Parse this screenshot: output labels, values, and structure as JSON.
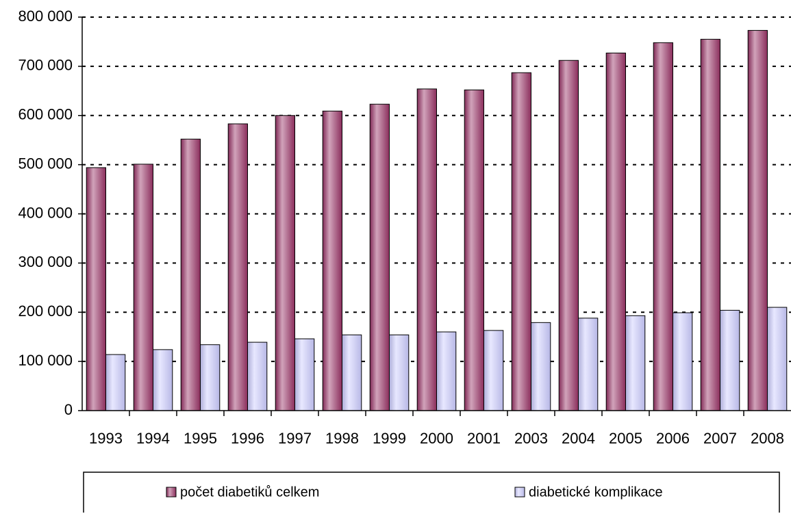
{
  "chart_data": {
    "type": "bar",
    "categories": [
      "1993",
      "1994",
      "1995",
      "1996",
      "1997",
      "1998",
      "1999",
      "2000",
      "2001",
      "2003",
      "2004",
      "2005",
      "2006",
      "2007",
      "2008"
    ],
    "series": [
      {
        "name": "počet diabetiků celkem",
        "color": "#993366",
        "values": [
          494000,
          501000,
          552000,
          583000,
          600000,
          609000,
          623000,
          654000,
          652000,
          687000,
          712000,
          727000,
          748000,
          755000,
          773000
        ]
      },
      {
        "name": "diabetické komplikace",
        "color": "#ccccff",
        "values": [
          114000,
          124000,
          134000,
          139000,
          146000,
          154000,
          154000,
          160000,
          163000,
          179000,
          188000,
          193000,
          199000,
          204000,
          210000
        ]
      }
    ],
    "ylim": [
      0,
      800000
    ],
    "yticks": [
      {
        "value": 0,
        "label": "0"
      },
      {
        "value": 100000,
        "label": "100 000"
      },
      {
        "value": 200000,
        "label": "200 000"
      },
      {
        "value": 300000,
        "label": "300 000"
      },
      {
        "value": 400000,
        "label": "400 000"
      },
      {
        "value": 500000,
        "label": "500 000"
      },
      {
        "value": 600000,
        "label": "600 000"
      },
      {
        "value": 700000,
        "label": "700 000"
      },
      {
        "value": 800000,
        "label": "800 000"
      }
    ],
    "grid": true
  }
}
